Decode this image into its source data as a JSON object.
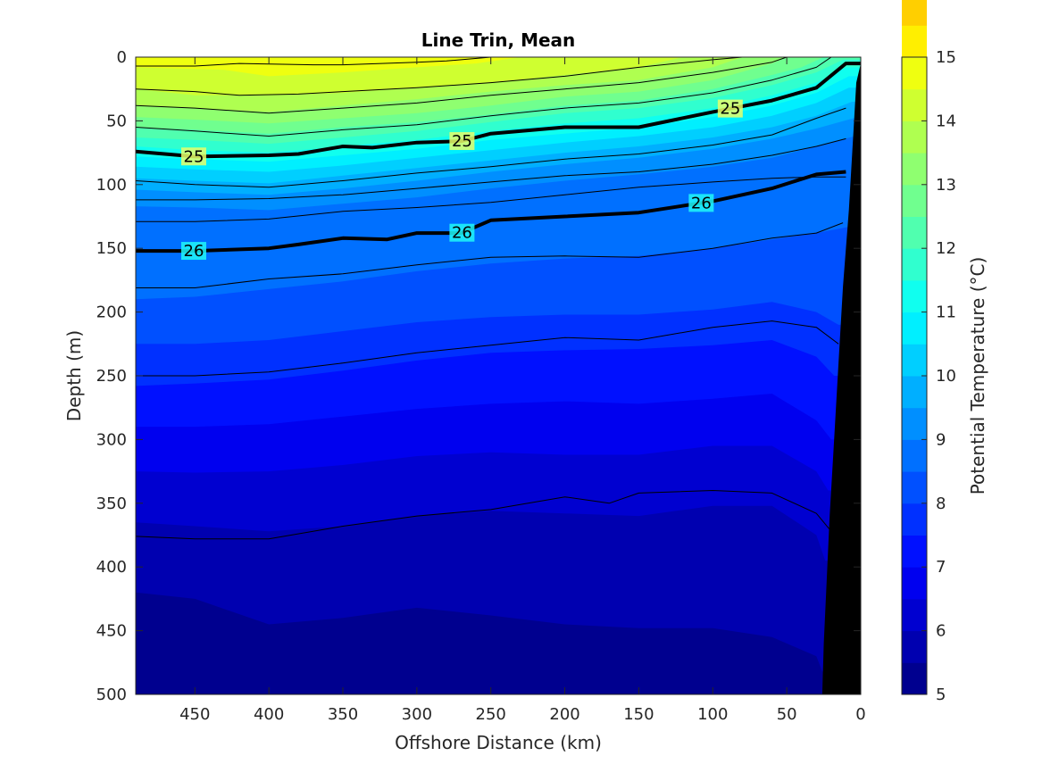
{
  "chart_data": {
    "type": "contour",
    "title": "Line Trin, Mean",
    "xlabel": "Offshore Distance (km)",
    "ylabel": "Depth (m)",
    "xlim": [
      490,
      0
    ],
    "ylim": [
      0,
      500
    ],
    "x_ticks": [
      450,
      400,
      350,
      300,
      250,
      200,
      150,
      100,
      50,
      0
    ],
    "y_ticks": [
      0,
      50,
      100,
      150,
      200,
      250,
      300,
      350,
      400,
      450,
      500
    ],
    "colorbar": {
      "label": "Potential Temperature (°C)",
      "min": 5,
      "max": 15,
      "ticks": [
        5,
        6,
        7,
        8,
        9,
        10,
        11,
        12,
        13,
        14,
        15
      ],
      "level_step": 0.5,
      "colors": [
        "#00008f",
        "#0000b0",
        "#0000d0",
        "#0000ef",
        "#0010ff",
        "#0030ff",
        "#0050ff",
        "#0070ff",
        "#008fff",
        "#00afff",
        "#00cfff",
        "#00efff",
        "#10ffef",
        "#30ffcf",
        "#50ffaf",
        "#70ff8f",
        "#8fff70",
        "#afff50",
        "#cfff30",
        "#efff10",
        "#ffef00",
        "#ffcf00",
        "#ffaf00",
        "#ff8f00",
        "#ff7000",
        "#ff5000",
        "#ff3000",
        "#ff1000",
        "#ef0000",
        "#b00000"
      ]
    },
    "temperature_isotherms": [
      {
        "value": 14.5,
        "x": [
          490,
          430,
          400,
          350,
          300,
          260,
          230
        ],
        "depth": [
          8,
          10,
          15,
          12,
          8,
          5,
          0
        ]
      },
      {
        "value": 14,
        "x": [
          490,
          450,
          400,
          350,
          300,
          250,
          200,
          150,
          120
        ],
        "depth": [
          25,
          30,
          30,
          28,
          24,
          20,
          14,
          8,
          0
        ]
      },
      {
        "value": 13.5,
        "x": [
          490,
          450,
          400,
          350,
          300,
          250,
          200,
          150,
          100,
          80
        ],
        "depth": [
          38,
          40,
          43,
          38,
          33,
          27,
          22,
          18,
          8,
          0
        ]
      },
      {
        "value": 13,
        "x": [
          490,
          450,
          400,
          350,
          300,
          250,
          200,
          150,
          100,
          60,
          50
        ],
        "depth": [
          47,
          49,
          52,
          48,
          44,
          38,
          31,
          27,
          18,
          5,
          0
        ]
      },
      {
        "value": 12.5,
        "x": [
          490,
          450,
          400,
          350,
          300,
          250,
          200,
          150,
          100,
          60,
          40,
          25
        ],
        "depth": [
          55,
          57,
          60,
          55,
          51,
          45,
          38,
          34,
          25,
          14,
          8,
          0
        ]
      },
      {
        "value": 12,
        "x": [
          490,
          450,
          400,
          350,
          300,
          250,
          200,
          150,
          100,
          60,
          30,
          12
        ],
        "depth": [
          63,
          65,
          68,
          63,
          58,
          51,
          44,
          40,
          32,
          22,
          12,
          2
        ]
      },
      {
        "value": 11.5,
        "x": [
          490,
          450,
          400,
          350,
          300,
          250,
          200,
          150,
          100,
          60,
          30,
          10
        ],
        "depth": [
          70,
          73,
          75,
          70,
          65,
          58,
          52,
          48,
          40,
          30,
          20,
          8
        ]
      },
      {
        "value": 11,
        "x": [
          490,
          450,
          400,
          350,
          300,
          250,
          200,
          150,
          100,
          60,
          30,
          8
        ],
        "depth": [
          78,
          80,
          82,
          77,
          72,
          65,
          60,
          55,
          47,
          38,
          28,
          15
        ]
      },
      {
        "value": 10.5,
        "x": [
          490,
          450,
          400,
          350,
          300,
          250,
          200,
          150,
          100,
          60,
          30,
          8
        ],
        "depth": [
          86,
          88,
          90,
          85,
          79,
          73,
          67,
          62,
          55,
          46,
          36,
          24
        ]
      },
      {
        "value": 10,
        "x": [
          490,
          450,
          400,
          350,
          300,
          250,
          200,
          150,
          100,
          60,
          30,
          6
        ],
        "depth": [
          95,
          97,
          99,
          93,
          87,
          81,
          75,
          70,
          63,
          55,
          46,
          35
        ]
      },
      {
        "value": 9.5,
        "x": [
          490,
          450,
          400,
          350,
          300,
          250,
          200,
          150,
          100,
          60,
          30,
          5
        ],
        "depth": [
          104,
          106,
          108,
          103,
          97,
          90,
          84,
          79,
          72,
          64,
          56,
          48
        ]
      },
      {
        "value": 9,
        "x": [
          490,
          450,
          400,
          350,
          300,
          250,
          200,
          150,
          100,
          60,
          30,
          4
        ],
        "depth": [
          117,
          118,
          120,
          115,
          110,
          103,
          97,
          92,
          86,
          79,
          70,
          62
        ]
      },
      {
        "value": 8.5,
        "x": [
          490,
          450,
          400,
          350,
          300,
          250,
          200,
          150,
          100,
          60,
          30,
          3
        ],
        "depth": [
          190,
          188,
          182,
          176,
          168,
          162,
          158,
          156,
          150,
          143,
          138,
          132
        ]
      },
      {
        "value": 8,
        "x": [
          490,
          450,
          400,
          350,
          300,
          250,
          200,
          150,
          100,
          60,
          30,
          15
        ],
        "depth": [
          225,
          225,
          222,
          215,
          208,
          204,
          202,
          202,
          198,
          192,
          200,
          210
        ]
      },
      {
        "value": 7.5,
        "x": [
          490,
          450,
          400,
          350,
          300,
          250,
          200,
          150,
          100,
          60,
          30,
          18
        ],
        "depth": [
          258,
          256,
          253,
          246,
          238,
          232,
          230,
          229,
          226,
          222,
          235,
          250
        ]
      },
      {
        "value": 7,
        "x": [
          490,
          450,
          400,
          350,
          300,
          250,
          200,
          150,
          100,
          60,
          30,
          20
        ],
        "depth": [
          290,
          290,
          288,
          282,
          276,
          272,
          270,
          272,
          268,
          264,
          285,
          300
        ]
      },
      {
        "value": 6.5,
        "x": [
          490,
          450,
          400,
          350,
          300,
          250,
          200,
          150,
          100,
          60,
          30,
          22
        ],
        "depth": [
          325,
          326,
          325,
          320,
          313,
          310,
          312,
          312,
          305,
          305,
          325,
          340
        ]
      },
      {
        "value": 6,
        "x": [
          490,
          450,
          400,
          350,
          300,
          250,
          200,
          150,
          100,
          60,
          30,
          24
        ],
        "depth": [
          365,
          368,
          372,
          368,
          360,
          356,
          358,
          360,
          352,
          352,
          375,
          395
        ]
      },
      {
        "value": 5.5,
        "x": [
          490,
          450,
          400,
          350,
          300,
          250,
          200,
          150,
          100,
          60,
          30,
          26
        ],
        "depth": [
          420,
          425,
          445,
          440,
          432,
          438,
          445,
          448,
          448,
          455,
          470,
          482
        ]
      }
    ],
    "density_contours": [
      {
        "x": [
          490,
          450,
          420,
          370,
          350,
          300,
          280,
          250,
          200,
          150,
          100,
          50,
          30
        ],
        "depth": [
          7,
          7,
          5,
          6,
          6,
          4,
          3,
          0,
          0,
          0,
          0,
          0,
          0
        ]
      },
      {
        "x": [
          490,
          450,
          420,
          380,
          350,
          300,
          250,
          200,
          150,
          100,
          80,
          50
        ],
        "depth": [
          25,
          27,
          30,
          29,
          27,
          24,
          20,
          15,
          8,
          2,
          0,
          0
        ]
      },
      {
        "x": [
          490,
          450,
          400,
          350,
          300,
          250,
          200,
          150,
          100,
          60,
          50
        ],
        "depth": [
          38,
          40,
          44,
          40,
          36,
          30,
          25,
          20,
          12,
          4,
          0
        ]
      },
      {
        "x": [
          490,
          450,
          400,
          350,
          300,
          250,
          200,
          150,
          100,
          60,
          30,
          20
        ],
        "depth": [
          55,
          58,
          62,
          57,
          53,
          46,
          40,
          36,
          28,
          18,
          8,
          0
        ]
      },
      {
        "thick": true,
        "label": "25",
        "x": [
          490,
          450,
          400,
          380,
          350,
          330,
          300,
          270,
          250,
          200,
          150,
          100,
          60,
          30,
          10,
          0
        ],
        "depth": [
          74,
          78,
          77,
          76,
          70,
          71,
          67,
          66,
          60,
          55,
          55,
          43,
          34,
          24,
          5,
          5
        ]
      },
      {
        "x": [
          490,
          450,
          400,
          350,
          300,
          250,
          200,
          150,
          100,
          60,
          30,
          10
        ],
        "depth": [
          97,
          100,
          102,
          97,
          91,
          86,
          80,
          76,
          69,
          61,
          48,
          40
        ]
      },
      {
        "x": [
          490,
          450,
          400,
          350,
          300,
          250,
          200,
          150,
          100,
          60,
          30,
          10
        ],
        "depth": [
          112,
          112,
          111,
          108,
          103,
          98,
          93,
          90,
          84,
          77,
          70,
          64
        ]
      },
      {
        "thick": true,
        "label": "26",
        "x": [
          490,
          450,
          400,
          380,
          350,
          320,
          300,
          270,
          250,
          200,
          150,
          100,
          60,
          30,
          10
        ],
        "depth": [
          152,
          152,
          150,
          147,
          142,
          143,
          138,
          138,
          128,
          125,
          122,
          113,
          103,
          92,
          90
        ]
      },
      {
        "x": [
          490,
          450,
          400,
          350,
          300,
          250,
          200,
          150,
          100,
          60,
          30,
          10
        ],
        "depth": [
          129,
          129,
          127,
          121,
          118,
          114,
          108,
          102,
          98,
          95,
          94,
          94
        ]
      },
      {
        "x": [
          490,
          450,
          400,
          350,
          300,
          250,
          200,
          150,
          100,
          60,
          30,
          12
        ],
        "depth": [
          181,
          181,
          174,
          170,
          163,
          157,
          156,
          157,
          150,
          142,
          138,
          130
        ]
      },
      {
        "x": [
          490,
          450,
          400,
          350,
          300,
          250,
          200,
          150,
          100,
          60,
          30,
          15
        ],
        "depth": [
          250,
          250,
          247,
          240,
          232,
          226,
          220,
          222,
          212,
          207,
          212,
          225
        ]
      },
      {
        "x": [
          490,
          450,
          400,
          350,
          300,
          250,
          200,
          170,
          150,
          100,
          60,
          30,
          20
        ],
        "depth": [
          376,
          378,
          378,
          368,
          360,
          355,
          345,
          350,
          342,
          340,
          342,
          358,
          372
        ]
      }
    ],
    "bottom_topography": {
      "x": [
        0,
        3,
        5,
        8,
        12,
        15,
        18,
        21,
        23,
        25,
        26,
        26,
        0
      ],
      "depth": [
        5,
        20,
        60,
        120,
        180,
        240,
        300,
        360,
        410,
        460,
        500,
        500,
        500
      ]
    }
  }
}
